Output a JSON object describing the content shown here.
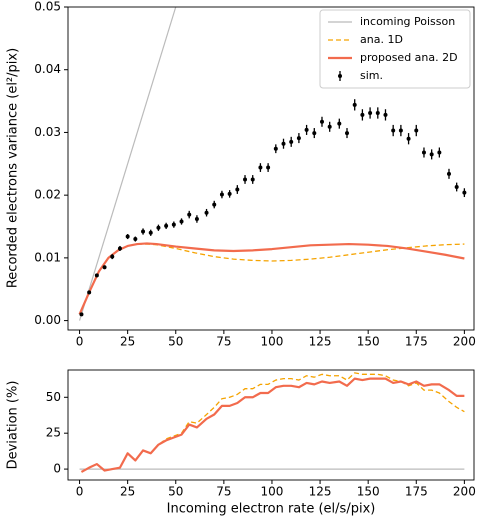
{
  "chart_data": [
    {
      "type": "line",
      "ylabel": "Recorded electrons variance (el²/pix)",
      "xlim": [
        -6,
        205
      ],
      "ylim": [
        -0.0015,
        0.05
      ],
      "xticks": [
        0,
        25,
        50,
        75,
        100,
        125,
        150,
        175,
        200
      ],
      "yticks": [
        {
          "value": 0,
          "label": "0.00"
        },
        {
          "value": 0.01,
          "label": "0.01"
        },
        {
          "value": 0.02,
          "label": "0.02"
        },
        {
          "value": 0.03,
          "label": "0.03"
        },
        {
          "value": 0.04,
          "label": "0.04"
        },
        {
          "value": 0.05,
          "label": "0.05"
        }
      ],
      "legend": "upper right",
      "series": [
        {
          "name": "incoming Poisson",
          "color": "#bbbbbb",
          "style": "line",
          "x": [
            0,
            50
          ],
          "values": [
            0,
            0.05
          ]
        },
        {
          "name": "ana. 1D",
          "color": "#f5a300",
          "style": "dashed",
          "x": [
            0,
            5,
            10,
            15,
            20,
            25,
            30,
            35,
            40,
            50,
            60,
            70,
            80,
            90,
            100,
            110,
            120,
            130,
            140,
            150,
            160,
            170,
            180,
            190,
            200
          ],
          "values": [
            0.001,
            0.0045,
            0.0078,
            0.01,
            0.0112,
            0.0119,
            0.0122,
            0.0122,
            0.0121,
            0.0115,
            0.0108,
            0.0102,
            0.0098,
            0.0096,
            0.0095,
            0.0096,
            0.0098,
            0.0101,
            0.0105,
            0.0109,
            0.0113,
            0.0116,
            0.0119,
            0.0121,
            0.0122
          ]
        },
        {
          "name": "proposed ana. 2D",
          "color": "#f26b4d",
          "style": "thick",
          "x": [
            0,
            5,
            10,
            15,
            20,
            25,
            30,
            35,
            40,
            50,
            60,
            70,
            80,
            90,
            100,
            110,
            120,
            130,
            140,
            150,
            160,
            170,
            180,
            190,
            200
          ],
          "values": [
            0.001,
            0.0045,
            0.0078,
            0.01,
            0.0112,
            0.0119,
            0.0122,
            0.0123,
            0.0122,
            0.0118,
            0.0115,
            0.0112,
            0.0111,
            0.0112,
            0.0114,
            0.0117,
            0.012,
            0.0121,
            0.0122,
            0.0121,
            0.0119,
            0.0115,
            0.011,
            0.0105,
            0.0099
          ]
        },
        {
          "name": "sim.",
          "color": "#000000",
          "style": "errorbar",
          "x": [
            1,
            5,
            9,
            13,
            17,
            21,
            25,
            29,
            33,
            37,
            41,
            45,
            49,
            53,
            57,
            61,
            66,
            70,
            74,
            78,
            82,
            86,
            90,
            94,
            98,
            102,
            106,
            110,
            114,
            118,
            122,
            126,
            130,
            135,
            139,
            143,
            147,
            151,
            155,
            159,
            163,
            167,
            171,
            175,
            179,
            183,
            187,
            192,
            196,
            200
          ],
          "values": [
            0.001,
            0.0045,
            0.0072,
            0.0085,
            0.0102,
            0.0115,
            0.0134,
            0.013,
            0.0142,
            0.014,
            0.0148,
            0.0151,
            0.0153,
            0.0158,
            0.0169,
            0.0162,
            0.0172,
            0.0185,
            0.0201,
            0.0202,
            0.0209,
            0.0225,
            0.0225,
            0.0244,
            0.0244,
            0.0274,
            0.0282,
            0.0285,
            0.0291,
            0.0304,
            0.0299,
            0.0317,
            0.0309,
            0.0314,
            0.0299,
            0.0344,
            0.0328,
            0.0331,
            0.0331,
            0.0328,
            0.0303,
            0.0303,
            0.029,
            0.0303,
            0.0268,
            0.0265,
            0.0268,
            0.0234,
            0.0213,
            0.0204
          ],
          "errors": [
            0.0002,
            0.0003,
            0.0003,
            0.0003,
            0.0004,
            0.0004,
            0.0004,
            0.0004,
            0.0005,
            0.0005,
            0.0005,
            0.0005,
            0.0005,
            0.0005,
            0.0006,
            0.0006,
            0.0006,
            0.0006,
            0.0006,
            0.0006,
            0.0007,
            0.0007,
            0.0007,
            0.0007,
            0.0007,
            0.0007,
            0.0008,
            0.0008,
            0.0008,
            0.0008,
            0.0008,
            0.0008,
            0.0008,
            0.0008,
            0.0008,
            0.0009,
            0.0009,
            0.0009,
            0.0009,
            0.0009,
            0.0009,
            0.0009,
            0.0009,
            0.0009,
            0.0008,
            0.0008,
            0.0008,
            0.0008,
            0.0007,
            0.0007
          ]
        }
      ]
    },
    {
      "type": "line",
      "xlabel": "Incoming electron rate (el/s/pix)",
      "ylabel": "Deviation (%)",
      "xlim": [
        -6,
        205
      ],
      "ylim": [
        -7.6,
        69
      ],
      "xticks": [
        0,
        25,
        50,
        75,
        100,
        125,
        150,
        175,
        200
      ],
      "yticks": [
        0,
        25,
        50
      ],
      "series": [
        {
          "name": "incoming Poisson",
          "color": "#bbbbbb",
          "style": "line",
          "x": [
            0,
            200
          ],
          "values": [
            0,
            0
          ]
        },
        {
          "name": "ana. 1D",
          "color": "#f5a300",
          "style": "dashed",
          "x": [
            1,
            5,
            9,
            13,
            17,
            21,
            25,
            29,
            33,
            37,
            41,
            45,
            49,
            53,
            57,
            61,
            66,
            70,
            74,
            78,
            82,
            86,
            90,
            94,
            98,
            102,
            106,
            110,
            114,
            118,
            122,
            126,
            130,
            135,
            139,
            143,
            147,
            151,
            155,
            159,
            163,
            167,
            171,
            175,
            179,
            183,
            187,
            192,
            196,
            200
          ],
          "values": [
            -2,
            1,
            3.5,
            -1,
            0,
            1,
            11,
            6,
            13,
            11,
            17,
            21,
            23,
            25,
            33,
            32,
            38,
            43,
            49,
            50,
            52,
            56,
            56,
            59,
            59,
            62,
            63,
            63,
            62,
            65,
            64,
            66,
            65,
            65,
            62,
            67,
            66,
            66,
            66,
            65,
            62,
            61,
            58,
            60,
            55,
            55,
            53,
            47,
            43,
            40
          ]
        },
        {
          "name": "proposed ana. 2D",
          "color": "#f26b4d",
          "style": "thick",
          "x": [
            1,
            5,
            9,
            13,
            17,
            21,
            25,
            29,
            33,
            37,
            41,
            45,
            49,
            53,
            57,
            61,
            66,
            70,
            74,
            78,
            82,
            86,
            90,
            94,
            98,
            102,
            106,
            110,
            114,
            118,
            122,
            126,
            130,
            135,
            139,
            143,
            147,
            151,
            155,
            159,
            163,
            167,
            171,
            175,
            179,
            183,
            187,
            192,
            196,
            200
          ],
          "values": [
            -2,
            1,
            3.5,
            -1,
            0,
            1,
            11,
            6,
            13,
            11,
            17,
            20,
            22,
            24,
            31,
            29,
            35,
            38,
            44,
            44,
            46,
            50,
            50,
            53,
            53,
            57,
            58,
            58,
            57,
            60,
            59,
            61,
            60,
            61,
            58,
            63,
            62,
            63,
            63,
            63,
            60,
            61,
            59,
            61,
            58,
            59,
            59,
            55,
            51,
            51
          ]
        }
      ]
    }
  ]
}
